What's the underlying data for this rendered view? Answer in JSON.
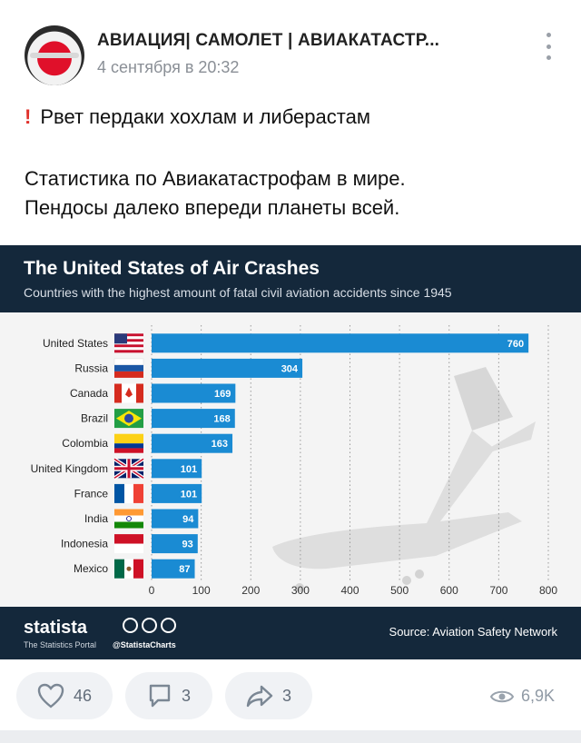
{
  "post": {
    "group_name": "АВИАЦИЯ| САМОЛЕТ | АВИАКАТАСТР...",
    "time": "4 сентября в 20:32",
    "text_line1": "Рвет пердаки хохлам и либерастам",
    "text_line2": "Статистика по Авиакатастрофам в мире.",
    "text_line3": "Пендосы далеко впереди планеты всей.",
    "emoji_icon": "exclamation-icon"
  },
  "infographic": {
    "brand": "statista",
    "brand_sub": "The Statistics Portal",
    "handle": "@StatistaCharts",
    "source": "Source: Aviation Safety Network",
    "header_bg": "#14283b",
    "bar_color": "#1a8bd3"
  },
  "chart_data": {
    "type": "bar",
    "orientation": "horizontal",
    "title": "The United States of Air Crashes",
    "subtitle": "Countries with the highest amount of fatal civil aviation accidents since 1945",
    "categories": [
      "United States",
      "Russia",
      "Canada",
      "Brazil",
      "Colombia",
      "United Kingdom",
      "France",
      "India",
      "Indonesia",
      "Mexico"
    ],
    "values": [
      760,
      304,
      169,
      168,
      163,
      101,
      101,
      94,
      93,
      87
    ],
    "flags": [
      "us-flag-icon",
      "ru-flag-icon",
      "ca-flag-icon",
      "br-flag-icon",
      "co-flag-icon",
      "gb-flag-icon",
      "fr-flag-icon",
      "in-flag-icon",
      "id-flag-icon",
      "mx-flag-icon"
    ],
    "xlim": [
      0,
      800
    ],
    "xticks": [
      0,
      100,
      200,
      300,
      400,
      500,
      600,
      700,
      800
    ],
    "grid": true,
    "xlabel": "",
    "ylabel": ""
  },
  "actions": {
    "likes": "46",
    "comments": "3",
    "shares": "3",
    "views": "6,9K"
  }
}
